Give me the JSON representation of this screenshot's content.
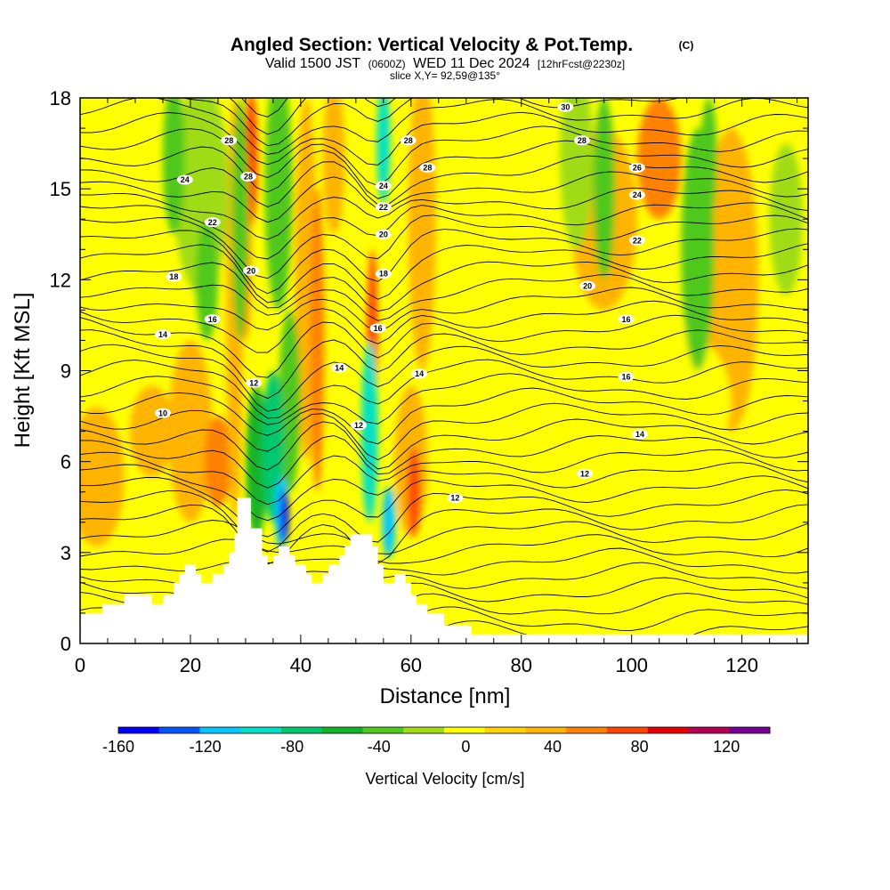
{
  "header": {
    "title_main": "Angled Section: Vertical Velocity & Pot.Temp.",
    "title_mark": "(C)",
    "valid_prefix": "Valid 1500 JST",
    "valid_z": "(0600Z)",
    "valid_date": "WED 11 Dec 2024",
    "valid_fcst": "[12hrFcst@2230z]",
    "slice": "slice X,Y= 92,59@135°"
  },
  "chart_data": {
    "type": "heatmap",
    "xlabel": "Distance [nm]",
    "ylabel": "Height [Kft MSL]",
    "xlim": [
      0,
      132
    ],
    "ylim": [
      0,
      18
    ],
    "x_ticks": [
      0,
      20,
      40,
      60,
      80,
      100,
      120
    ],
    "x_tick_labels": [
      "0",
      "20",
      "40",
      "60",
      "80",
      "100",
      "120"
    ],
    "y_ticks": [
      0,
      3,
      6,
      9,
      12,
      15,
      18
    ],
    "y_tick_labels": [
      "0",
      "3",
      "6",
      "9",
      "12",
      "15",
      "18"
    ],
    "background_value": 10,
    "terrain": [
      [
        0,
        1
      ],
      [
        4,
        1
      ],
      [
        4,
        1.3
      ],
      [
        8,
        1.3
      ],
      [
        8,
        1.6
      ],
      [
        13,
        1.6
      ],
      [
        13,
        1.3
      ],
      [
        15,
        1.3
      ],
      [
        15,
        1.6
      ],
      [
        17,
        1.6
      ],
      [
        17,
        2
      ],
      [
        18,
        2
      ],
      [
        18,
        2.3
      ],
      [
        19,
        2.3
      ],
      [
        19,
        2.6
      ],
      [
        21,
        2.6
      ],
      [
        21,
        2.3
      ],
      [
        22,
        2.3
      ],
      [
        22,
        2
      ],
      [
        24,
        2
      ],
      [
        24,
        2.3
      ],
      [
        26,
        2.3
      ],
      [
        26,
        2.6
      ],
      [
        27,
        2.6
      ],
      [
        27,
        3
      ],
      [
        28,
        3
      ],
      [
        28,
        3.6
      ],
      [
        28.5,
        3.6
      ],
      [
        28.5,
        4.8
      ],
      [
        31,
        4.8
      ],
      [
        31,
        3.8
      ],
      [
        33,
        3.8
      ],
      [
        33,
        2.9
      ],
      [
        34,
        2.9
      ],
      [
        34,
        2.6
      ],
      [
        35,
        2.6
      ],
      [
        35,
        2.9
      ],
      [
        36,
        2.9
      ],
      [
        36,
        3.2
      ],
      [
        38,
        3.2
      ],
      [
        38,
        2.9
      ],
      [
        39,
        2.9
      ],
      [
        39,
        2.6
      ],
      [
        41,
        2.6
      ],
      [
        41,
        2.3
      ],
      [
        42,
        2.3
      ],
      [
        42,
        2
      ],
      [
        44,
        2
      ],
      [
        44,
        2.3
      ],
      [
        45,
        2.3
      ],
      [
        45,
        2.6
      ],
      [
        47,
        2.6
      ],
      [
        47,
        2.9
      ],
      [
        48,
        2.9
      ],
      [
        48,
        3.2
      ],
      [
        49,
        3.2
      ],
      [
        49,
        3.6
      ],
      [
        53,
        3.6
      ],
      [
        53,
        3.2
      ],
      [
        54,
        3.2
      ],
      [
        54,
        2.6
      ],
      [
        55,
        2.6
      ],
      [
        55,
        2
      ],
      [
        57,
        2
      ],
      [
        57,
        2.3
      ],
      [
        59,
        2.3
      ],
      [
        59,
        2
      ],
      [
        60,
        2
      ],
      [
        60,
        1.6
      ],
      [
        61,
        1.6
      ],
      [
        61,
        1.3
      ],
      [
        63,
        1.3
      ],
      [
        63,
        1
      ],
      [
        66,
        1
      ],
      [
        66,
        0.6
      ],
      [
        71,
        0.6
      ],
      [
        71,
        0.3
      ],
      [
        132,
        0.3
      ],
      [
        132,
        0
      ],
      [
        0,
        0
      ]
    ],
    "velocity_features": [
      {
        "x": 3,
        "y": 5.5,
        "rx": 5,
        "ry": 2.3,
        "v": 40
      },
      {
        "x": 13,
        "y": 7,
        "rx": 4,
        "ry": 1.5,
        "v": 40
      },
      {
        "x": 20,
        "y": 7,
        "rx": 4,
        "ry": 3,
        "v": 40
      },
      {
        "x": 25,
        "y": 6,
        "rx": 2.5,
        "ry": 1.5,
        "v": 60
      },
      {
        "x": 28,
        "y": 11,
        "rx": 1.5,
        "ry": 7,
        "v": 40
      },
      {
        "x": 31,
        "y": 16,
        "rx": 1.2,
        "ry": 2.2,
        "v": 80
      },
      {
        "x": 30,
        "y": 13,
        "rx": 1,
        "ry": 3,
        "v": 60
      },
      {
        "x": 41,
        "y": 12,
        "rx": 2,
        "ry": 6,
        "v": 40
      },
      {
        "x": 43,
        "y": 10,
        "rx": 1.3,
        "ry": 5,
        "v": 60
      },
      {
        "x": 46,
        "y": 16,
        "rx": 2,
        "ry": 2.5,
        "v": 40
      },
      {
        "x": 53,
        "y": 10,
        "rx": 1,
        "ry": 3,
        "v": 80
      },
      {
        "x": 60,
        "y": 6,
        "rx": 3,
        "ry": 2.5,
        "v": 40
      },
      {
        "x": 60.5,
        "y": 5,
        "rx": 1.2,
        "ry": 1.5,
        "v": 80
      },
      {
        "x": 62,
        "y": 14,
        "rx": 2.5,
        "ry": 5,
        "v": 40
      },
      {
        "x": 95,
        "y": 14,
        "rx": 6,
        "ry": 3,
        "v": 40
      },
      {
        "x": 105,
        "y": 16,
        "rx": 4,
        "ry": 2,
        "v": 60
      },
      {
        "x": 118,
        "y": 12,
        "rx": 5,
        "ry": 5,
        "v": 40
      },
      {
        "x": 85,
        "y": 3,
        "rx": 12,
        "ry": 2,
        "v": 0
      },
      {
        "x": 115,
        "y": 3,
        "rx": 12,
        "ry": 2,
        "v": 0
      },
      {
        "x": 100,
        "y": 8,
        "rx": 18,
        "ry": 3,
        "v": 0
      },
      {
        "x": 22,
        "y": 15,
        "rx": 5,
        "ry": 3.5,
        "v": -20
      },
      {
        "x": 17,
        "y": 16,
        "rx": 2,
        "ry": 2.5,
        "v": -40
      },
      {
        "x": 23,
        "y": 12,
        "rx": 2,
        "ry": 2,
        "v": -40
      },
      {
        "x": 29,
        "y": 14,
        "rx": 1.5,
        "ry": 4,
        "v": -40
      },
      {
        "x": 36,
        "y": 15,
        "rx": 2.5,
        "ry": 4,
        "v": -40
      },
      {
        "x": 38,
        "y": 8,
        "rx": 2,
        "ry": 3,
        "v": -40
      },
      {
        "x": 90,
        "y": 16,
        "rx": 3,
        "ry": 3,
        "v": -20
      },
      {
        "x": 95,
        "y": 15,
        "rx": 2,
        "ry": 3,
        "v": -40
      },
      {
        "x": 112,
        "y": 13,
        "rx": 3,
        "ry": 4,
        "v": -40
      },
      {
        "x": 114,
        "y": 16,
        "rx": 1.5,
        "ry": 2,
        "v": -40
      },
      {
        "x": 128,
        "y": 14,
        "rx": 3,
        "ry": 2.5,
        "v": -20
      },
      {
        "x": 32,
        "y": 6,
        "rx": 2,
        "ry": 2.5,
        "v": -60
      },
      {
        "x": 35,
        "y": 6.5,
        "rx": 2,
        "ry": 2.5,
        "v": -80
      },
      {
        "x": 36.5,
        "y": 4.3,
        "rx": 1.2,
        "ry": 1.2,
        "v": -120
      },
      {
        "x": 37,
        "y": 4.2,
        "rx": 0.8,
        "ry": 0.9,
        "v": -160
      },
      {
        "x": 52.5,
        "y": 7,
        "rx": 1.5,
        "ry": 3,
        "v": -100
      },
      {
        "x": 55,
        "y": 16.5,
        "rx": 1.2,
        "ry": 2,
        "v": -100
      },
      {
        "x": 56,
        "y": 4,
        "rx": 1.2,
        "ry": 1.2,
        "v": -120
      }
    ],
    "contour_labels": [
      {
        "x": 88,
        "y": 17.7,
        "label": "30"
      },
      {
        "x": 27,
        "y": 16.6,
        "label": "28"
      },
      {
        "x": 30.5,
        "y": 15.4,
        "label": "28"
      },
      {
        "x": 59.5,
        "y": 16.6,
        "label": "28"
      },
      {
        "x": 63,
        "y": 15.7,
        "label": "28"
      },
      {
        "x": 91,
        "y": 16.6,
        "label": "28"
      },
      {
        "x": 101,
        "y": 15.7,
        "label": "26"
      },
      {
        "x": 19,
        "y": 15.3,
        "label": "24"
      },
      {
        "x": 55,
        "y": 15.1,
        "label": "24"
      },
      {
        "x": 101,
        "y": 14.8,
        "label": "24"
      },
      {
        "x": 24,
        "y": 13.9,
        "label": "22"
      },
      {
        "x": 55,
        "y": 14.4,
        "label": "22"
      },
      {
        "x": 101,
        "y": 13.3,
        "label": "22"
      },
      {
        "x": 31,
        "y": 12.3,
        "label": "20"
      },
      {
        "x": 55,
        "y": 13.5,
        "label": "20"
      },
      {
        "x": 92,
        "y": 11.8,
        "label": "20"
      },
      {
        "x": 17,
        "y": 12.1,
        "label": "18"
      },
      {
        "x": 55,
        "y": 12.2,
        "label": "18"
      },
      {
        "x": 24,
        "y": 10.7,
        "label": "16"
      },
      {
        "x": 54,
        "y": 10.4,
        "label": "16"
      },
      {
        "x": 99,
        "y": 10.7,
        "label": "16"
      },
      {
        "x": 99,
        "y": 8.8,
        "label": "16"
      },
      {
        "x": 15,
        "y": 10.2,
        "label": "14"
      },
      {
        "x": 47,
        "y": 9.1,
        "label": "14"
      },
      {
        "x": 61.5,
        "y": 8.9,
        "label": "14"
      },
      {
        "x": 101.5,
        "y": 6.9,
        "label": "14"
      },
      {
        "x": 31.5,
        "y": 8.6,
        "label": "12"
      },
      {
        "x": 50.5,
        "y": 7.2,
        "label": "12"
      },
      {
        "x": 68,
        "y": 4.8,
        "label": "12"
      },
      {
        "x": 91.5,
        "y": 5.6,
        "label": "12"
      },
      {
        "x": 15,
        "y": 7.6,
        "label": "10"
      }
    ],
    "colorbar": {
      "label": "Vertical Velocity [cm/s]",
      "bins": [
        -160,
        -140,
        -120,
        -100,
        -80,
        -60,
        -40,
        -20,
        0,
        20,
        40,
        60,
        80,
        100,
        120,
        140
      ],
      "colors": [
        "#0000ff",
        "#0055ff",
        "#00c8ff",
        "#00e1c8",
        "#00c86e",
        "#14b428",
        "#50c81e",
        "#a0dc14",
        "#ffff00",
        "#ffd200",
        "#ffb400",
        "#ff8200",
        "#ff4600",
        "#e60000",
        "#b40050",
        "#780096"
      ],
      "tick_values": [
        -160,
        -120,
        -80,
        -40,
        0,
        40,
        80,
        120
      ],
      "tick_labels": [
        "-160",
        "-120",
        "-80",
        "-40",
        "0",
        "40",
        "80",
        "120"
      ]
    }
  }
}
